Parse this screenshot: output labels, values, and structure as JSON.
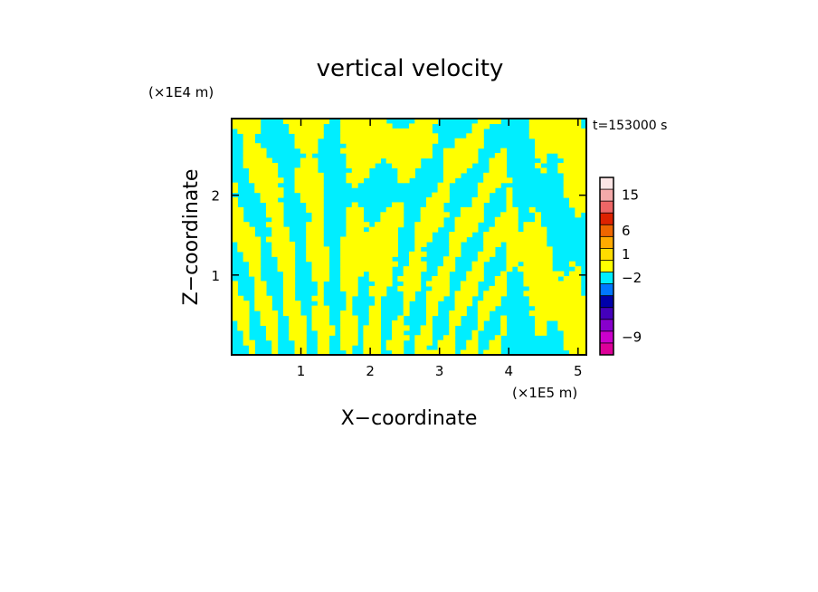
{
  "chart_data": {
    "type": "heatmap",
    "title": "vertical velocity",
    "xlabel": "X−coordinate",
    "ylabel": "Z−coordinate",
    "x_unit": "(×1E5 m)",
    "y_unit": "(×1E4 m)",
    "time_label": "t=153000 s",
    "xlim": [
      0,
      5.12
    ],
    "ylim": [
      0,
      2.96
    ],
    "x_ticks": [
      {
        "value": 1,
        "label": "1"
      },
      {
        "value": 2,
        "label": "2"
      },
      {
        "value": 3,
        "label": "3"
      },
      {
        "value": 4,
        "label": "4"
      },
      {
        "value": 5,
        "label": "5"
      }
    ],
    "y_ticks": [
      {
        "value": 1,
        "label": "1"
      },
      {
        "value": 2,
        "label": "2"
      }
    ],
    "dominant_colors": {
      "positive": "#ffff00",
      "negative": "#00eeff"
    },
    "colorbar": {
      "levels": [
        {
          "color": "#dd0099"
        },
        {
          "color": "#cc00cc"
        },
        {
          "color": "#8800cc"
        },
        {
          "color": "#4400bb"
        },
        {
          "color": "#0000aa"
        },
        {
          "color": "#0077ff"
        },
        {
          "color": "#00eeff"
        },
        {
          "color": "#ffff00"
        },
        {
          "color": "#ffdd00"
        },
        {
          "color": "#ffaa00"
        },
        {
          "color": "#ee6600"
        },
        {
          "color": "#dd2200"
        },
        {
          "color": "#ee6666"
        },
        {
          "color": "#f4aaaa"
        },
        {
          "color": "#fde6e6"
        }
      ],
      "tick_labels": [
        {
          "label": "−9",
          "level_index": 1
        },
        {
          "label": "−2",
          "level_index": 6
        },
        {
          "label": "1",
          "level_index": 8
        },
        {
          "label": "6",
          "level_index": 10
        },
        {
          "label": "15",
          "level_index": 13
        }
      ]
    }
  }
}
